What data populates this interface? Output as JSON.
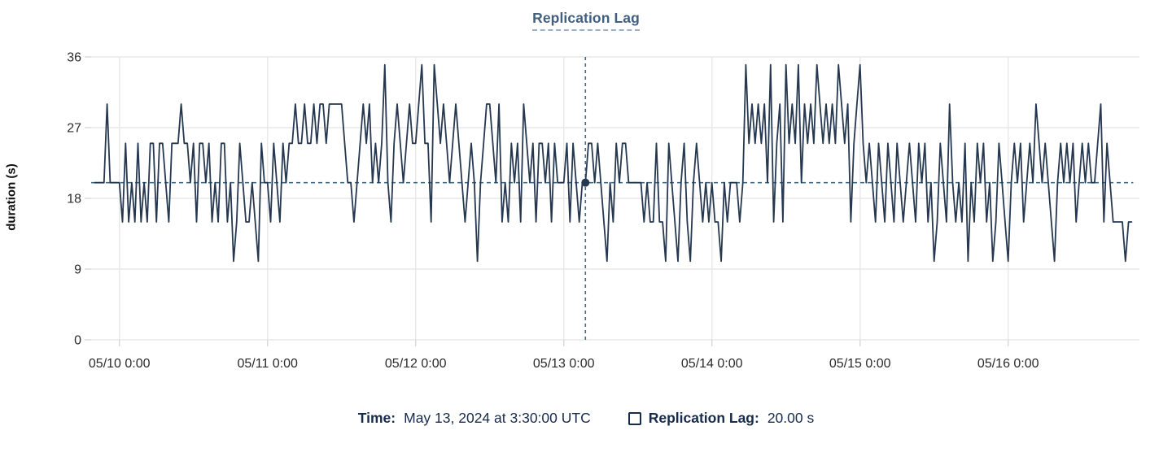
{
  "chart_data": {
    "type": "line",
    "title": "Replication Lag",
    "xlabel": "",
    "ylabel": "duration (s)",
    "ylim": [
      0,
      36
    ],
    "yticks": [
      0,
      9,
      18,
      27,
      36
    ],
    "grid": true,
    "legend_position": "bottom",
    "x_start": "2024-05-09 20:00 UTC",
    "x_interval_minutes": 30,
    "xticks": {
      "labels": [
        "05/10 0:00",
        "05/11 0:00",
        "05/12 0:00",
        "05/13 0:00",
        "05/14 0:00",
        "05/15 0:00",
        "05/16 0:00"
      ],
      "indices": [
        8,
        56,
        104,
        152,
        200,
        248,
        296
      ]
    },
    "series": [
      {
        "name": "Replication Lag",
        "unit": "s",
        "values": [
          20,
          20,
          20,
          20,
          30,
          20,
          20,
          20,
          20,
          15,
          25,
          15,
          20,
          15,
          25,
          15,
          20,
          15,
          25,
          25,
          15,
          25,
          25,
          20,
          15,
          25,
          25,
          25,
          30,
          25,
          25,
          20,
          25,
          15,
          25,
          25,
          20,
          25,
          15,
          20,
          15,
          25,
          25,
          15,
          20,
          10,
          15,
          25,
          20,
          15,
          15,
          20,
          15,
          10,
          25,
          20,
          20,
          15,
          25,
          20,
          15,
          25,
          20,
          25,
          25,
          30,
          25,
          25,
          30,
          25,
          25,
          30,
          25,
          30,
          30,
          25,
          30,
          30,
          30,
          30,
          30,
          25,
          20,
          20,
          15,
          20,
          25,
          30,
          25,
          30,
          20,
          25,
          20,
          25,
          35,
          20,
          15,
          25,
          30,
          25,
          20,
          25,
          30,
          25,
          25,
          30,
          35,
          25,
          25,
          15,
          35,
          30,
          25,
          30,
          25,
          20,
          25,
          30,
          25,
          20,
          15,
          20,
          25,
          20,
          10,
          20,
          25,
          30,
          30,
          25,
          20,
          30,
          15,
          20,
          15,
          25,
          20,
          25,
          15,
          30,
          25,
          20,
          25,
          15,
          25,
          25,
          20,
          25,
          15,
          25,
          20,
          20,
          20,
          25,
          15,
          25,
          20,
          15,
          20,
          20,
          25,
          25,
          20,
          25,
          20,
          15,
          10,
          20,
          15,
          25,
          20,
          25,
          25,
          20,
          20,
          20,
          20,
          20,
          15,
          20,
          15,
          15,
          25,
          15,
          15,
          10,
          25,
          20,
          15,
          10,
          20,
          25,
          15,
          10,
          20,
          25,
          20,
          15,
          20,
          15,
          20,
          15,
          15,
          10,
          20,
          15,
          20,
          20,
          20,
          15,
          20,
          35,
          25,
          30,
          25,
          30,
          25,
          30,
          20,
          35,
          15,
          25,
          30,
          15,
          35,
          25,
          30,
          25,
          35,
          20,
          30,
          25,
          30,
          25,
          35,
          30,
          25,
          30,
          25,
          30,
          25,
          35,
          30,
          25,
          30,
          15,
          25,
          30,
          35,
          25,
          20,
          25,
          20,
          15,
          25,
          20,
          15,
          25,
          20,
          15,
          25,
          20,
          15,
          20,
          25,
          20,
          15,
          25,
          20,
          25,
          15,
          20,
          10,
          15,
          25,
          20,
          15,
          30,
          20,
          15,
          20,
          15,
          25,
          10,
          20,
          15,
          25,
          20,
          25,
          15,
          20,
          10,
          15,
          25,
          20,
          15,
          10,
          20,
          25,
          20,
          25,
          15,
          20,
          25,
          20,
          30,
          25,
          20,
          25,
          20,
          15,
          10,
          20,
          25,
          20,
          25,
          20,
          25,
          15,
          20,
          25,
          20,
          25,
          20,
          20,
          25,
          30,
          15,
          25,
          20,
          15,
          15,
          15,
          15,
          10,
          15,
          15
        ]
      }
    ],
    "crosshair": {
      "x_index": 159,
      "y_value": 20,
      "time": "May 13, 2024 at 3:30:00 UTC"
    }
  },
  "footer": {
    "time_label": "Time:",
    "time_value": "May 13, 2024 at 3:30:00 UTC",
    "series_label": "Replication Lag:",
    "series_value": "20.00 s"
  },
  "colors": {
    "line": "#253850",
    "crosshair": "#3f6b87",
    "dot": "#253850",
    "grid": "#e8e8e8",
    "tick": "#d8d8d8",
    "tick_label": "#2a2a2a",
    "title": "#41607f",
    "legend_text": "#172b4d"
  }
}
